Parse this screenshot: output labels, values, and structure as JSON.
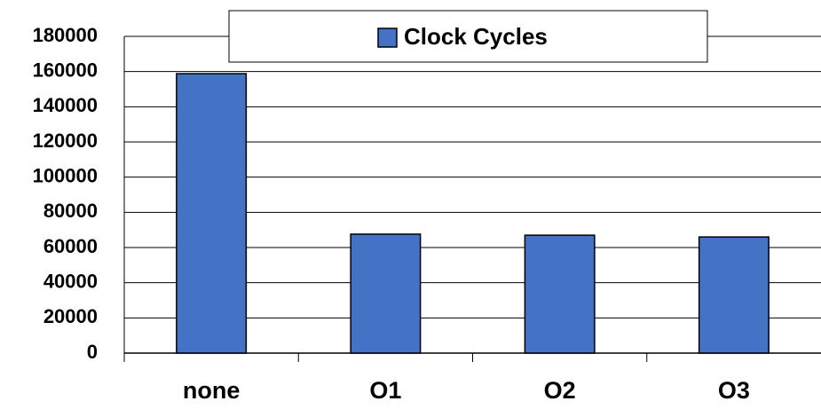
{
  "chart_data": {
    "type": "bar",
    "categories": [
      "none",
      "O1",
      "O2",
      "O3"
    ],
    "series": [
      {
        "name": "Clock Cycles",
        "color": "#4472c4",
        "values": [
          158800,
          67600,
          67000,
          66000
        ]
      }
    ],
    "ylim": [
      0,
      180000
    ],
    "yticks": [
      0,
      20000,
      40000,
      60000,
      80000,
      100000,
      120000,
      140000,
      160000,
      180000
    ],
    "grid": true,
    "legend": "top"
  }
}
